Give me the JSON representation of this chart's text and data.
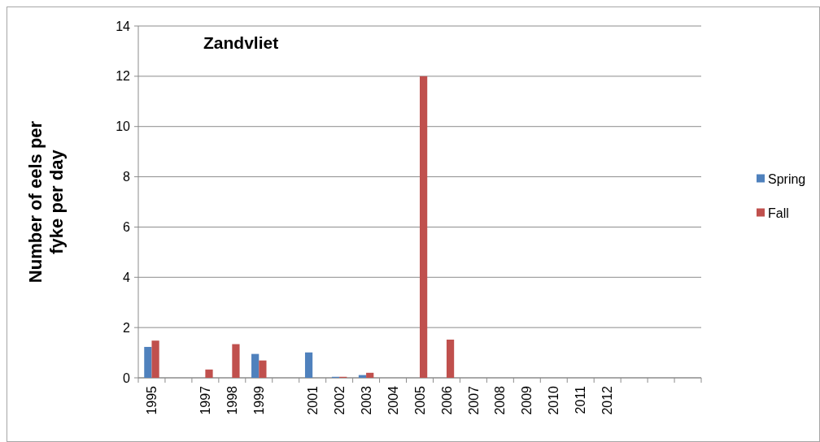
{
  "chart_data": {
    "type": "bar",
    "title": "Zandvliet",
    "ylabel": "Number of eels per fyke per day",
    "categories": [
      "1995",
      null,
      "1997",
      "1998",
      "1999",
      null,
      "2001",
      "2002",
      "2003",
      "2004",
      "2005",
      "2006",
      "2007",
      "2008",
      "2009",
      "2010",
      "2011",
      "2012",
      null,
      null,
      null
    ],
    "series": [
      {
        "name": "Spring",
        "color": "#4f81bd",
        "values": [
          1.23,
          null,
          0,
          0,
          0.95,
          null,
          1.01,
          0.04,
          0.11,
          0,
          0,
          0,
          0,
          0,
          0,
          0,
          0,
          0,
          null,
          null,
          null
        ]
      },
      {
        "name": "Fall",
        "color": "#c0504d",
        "values": [
          1.48,
          null,
          0.33,
          1.34,
          0.69,
          null,
          0,
          0.04,
          0.2,
          0,
          12,
          1.52,
          0,
          0,
          0,
          0,
          0,
          0,
          null,
          null,
          null
        ]
      }
    ],
    "ylim": [
      0,
      14
    ],
    "yticks": [
      0,
      2,
      4,
      6,
      8,
      10,
      12,
      14
    ],
    "grid": "y",
    "legend": "right"
  }
}
